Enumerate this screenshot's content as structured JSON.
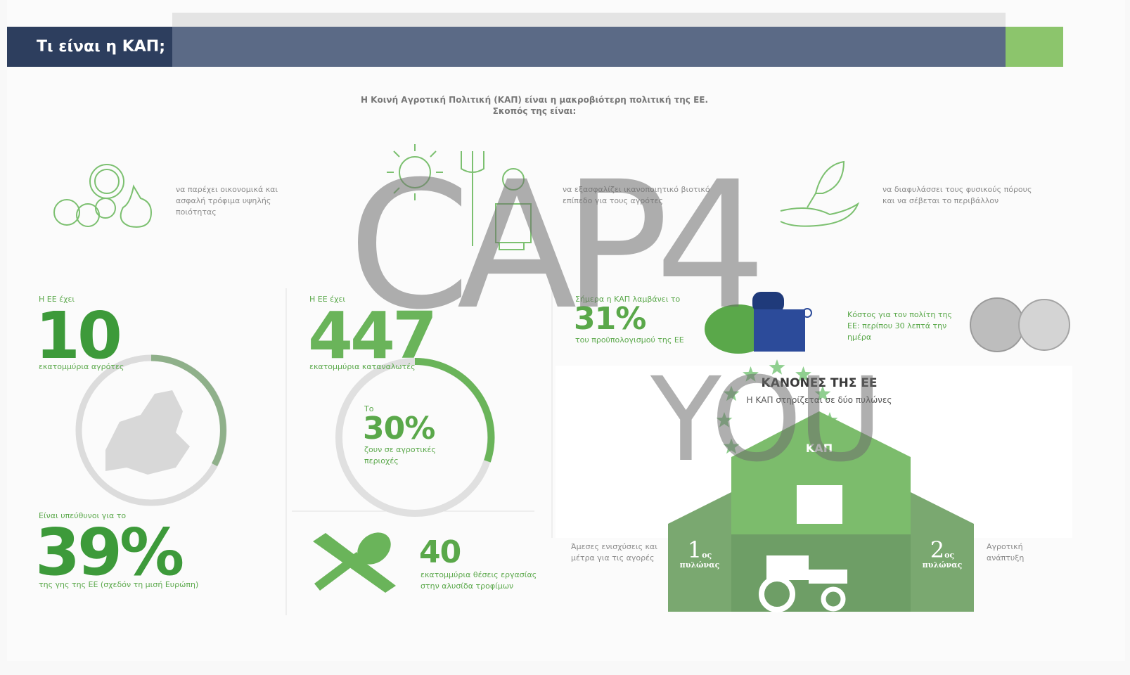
{
  "header": {
    "title": "Τι είναι η ΚΑΠ;"
  },
  "intro": "Η Κοινή Αγροτική Πολιτική (ΚΑΠ) είναι η μακροβιότερη πολιτική της ΕΕ. Σκοπός της είναι:",
  "aims": [
    "να παρέχει οικονομικά και ασφαλή τρόφιμα υψηλής ποιότητας",
    "να εξασφαλίζει ικανοποιητικό βιοτικό επίπεδο για τους αγρότες",
    "να διαφυλάσσει τους φυσικούς πόρους και να σέβεται το περιβάλλον"
  ],
  "farmers": {
    "prefix": "Η ΕΕ έχει",
    "value": "10",
    "suffix": "εκατομμύρια αγρότες"
  },
  "land": {
    "prefix": "Είναι υπεύθυνοι για το",
    "value": "39%",
    "suffix": "της γης της ΕΕ (σχεδόν τη μισή Ευρώπη)"
  },
  "consumers": {
    "prefix": "Η ΕΕ έχει",
    "value": "447",
    "suffix": "εκατομμύρια καταναλωτές"
  },
  "rural": {
    "prefix": "Το",
    "value": "30%",
    "suffix": "ζουν σε αγροτικές περιοχές"
  },
  "jobs": {
    "value": "40",
    "suffix": "εκατομμύρια θέσεις εργασίας στην αλυσίδα τροφίμων"
  },
  "budget": {
    "prefix": "Σήμερα η ΚΑΠ λαμβάνει το",
    "value": "31%",
    "suffix": "του προϋπολογισμού της ΕΕ"
  },
  "cost": "Κόστος για τον πολίτη της ΕΕ: περίπου 30 λεπτά την ημέρα",
  "rules": {
    "title": "ΚΑΝΟΝΕΣ ΤΗΣ ΕΕ",
    "subtitle": "Η ΚΑΠ στηρίζεται σε δύο πυλώνες",
    "building": "ΚΑΠ",
    "pillar1": {
      "number": "1",
      "suffix": "ος",
      "label": "πυλώνας",
      "description": "Άμεσες ενισχύσεις και μέτρα για τις αγορές"
    },
    "pillar2": {
      "number": "2",
      "suffix": "ος",
      "label": "πυλώνας",
      "description": "Αγροτική ανάπτυξη"
    }
  },
  "watermark": {
    "line1": "CAP4",
    "line2": "YOU"
  }
}
